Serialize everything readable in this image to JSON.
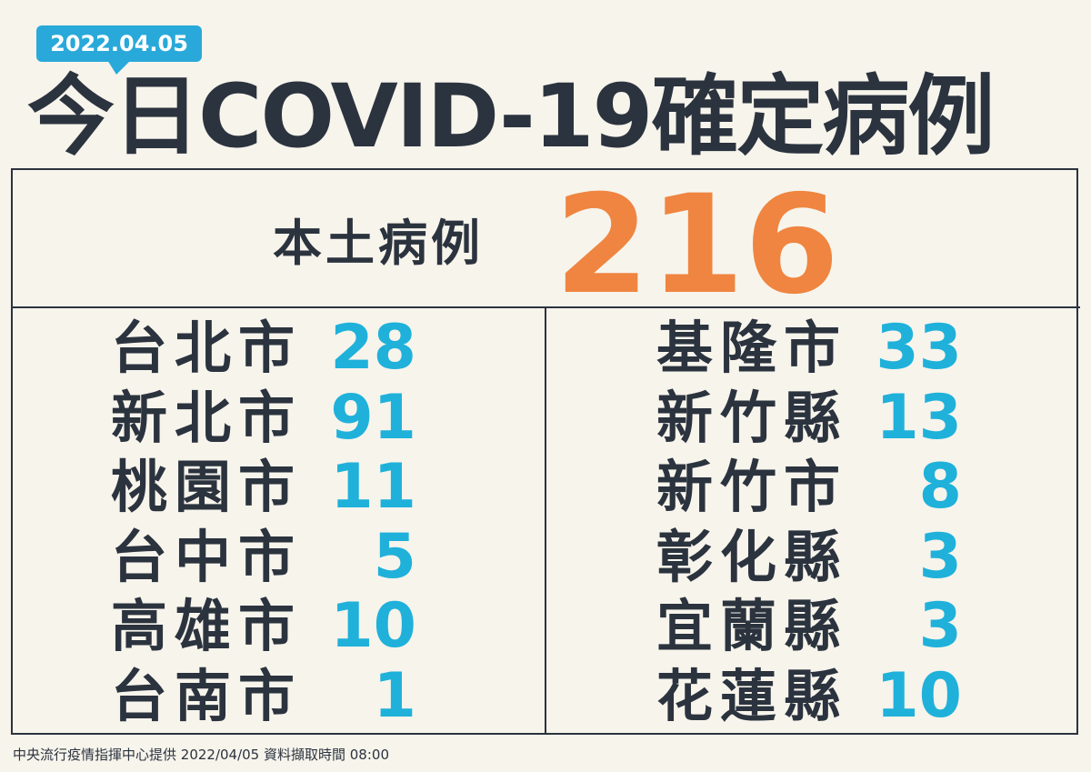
{
  "header": {
    "date": "2022.04.05",
    "title": "今日COVID-19確定病例"
  },
  "local": {
    "label": "本土病例",
    "total": 216
  },
  "left": [
    {
      "city": "台北市",
      "count": 28
    },
    {
      "city": "新北市",
      "count": 91
    },
    {
      "city": "桃園市",
      "count": 11
    },
    {
      "city": "台中市",
      "count": 5
    },
    {
      "city": "高雄市",
      "count": 10
    },
    {
      "city": "台南市",
      "count": 1
    }
  ],
  "right": [
    {
      "city": "基隆市",
      "count": 33
    },
    {
      "city": "新竹縣",
      "count": 13
    },
    {
      "city": "新竹市",
      "count": 8
    },
    {
      "city": "彰化縣",
      "count": 3
    },
    {
      "city": "宜蘭縣",
      "count": 3
    },
    {
      "city": "花蓮縣",
      "count": 10
    }
  ],
  "footer": "中央流行疫情指揮中心提供 2022/04/05 資料擷取時間 08:00"
}
